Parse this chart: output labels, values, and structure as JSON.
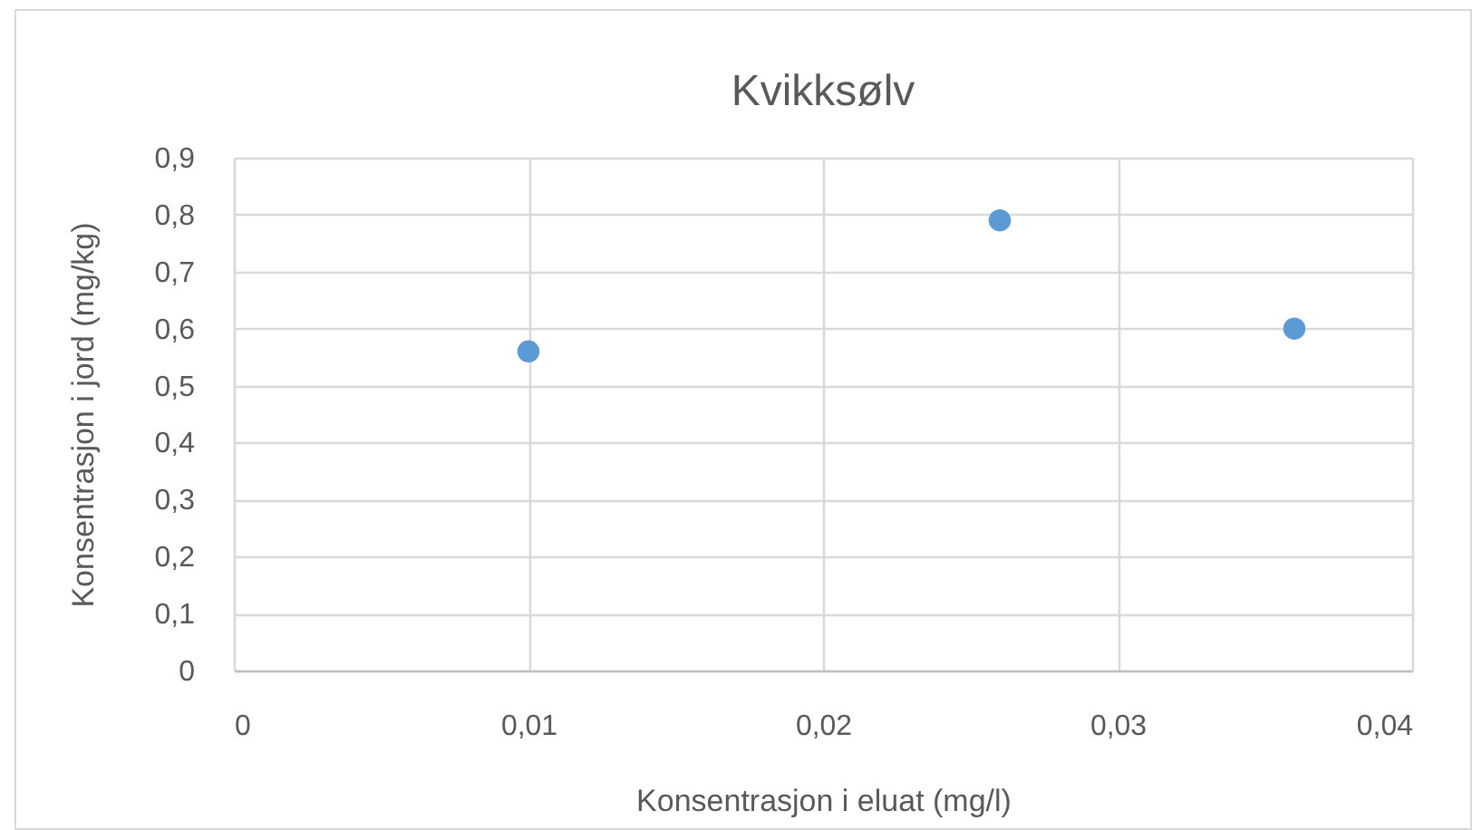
{
  "chart_data": {
    "type": "scatter",
    "title": "Kvikksølv",
    "xlabel": "Konsentrasjon i eluat (mg/l)",
    "ylabel": "Konsentrasjon i jord (mg/kg)",
    "x": [
      0.01,
      0.026,
      0.036
    ],
    "series": [
      {
        "color": "#5b9bd5",
        "values": [
          0.56,
          0.79,
          0.6
        ]
      }
    ],
    "xlim": [
      0,
      0.04
    ],
    "xticks": [
      0,
      {
        "value": 0.01,
        "label": "0,01"
      },
      {
        "value": 0.02,
        "label": "0,02"
      },
      {
        "value": 0.03,
        "label": "0,03"
      },
      {
        "value": 0.04,
        "label": "0,04"
      }
    ],
    "ylim": [
      0,
      0.9
    ],
    "yticks": [
      0,
      {
        "value": 0.1,
        "label": "0,1"
      },
      {
        "value": 0.2,
        "label": "0,2"
      },
      {
        "value": 0.3,
        "label": "0,3"
      },
      {
        "value": 0.4,
        "label": "0,4"
      },
      {
        "value": 0.5,
        "label": "0,5"
      },
      {
        "value": 0.6,
        "label": "0,6"
      },
      {
        "value": 0.7,
        "label": "0,7"
      },
      {
        "value": 0.8,
        "label": "0,8"
      },
      {
        "value": 0.9,
        "label": "0,9"
      }
    ],
    "grid": true,
    "marker": "circle"
  }
}
